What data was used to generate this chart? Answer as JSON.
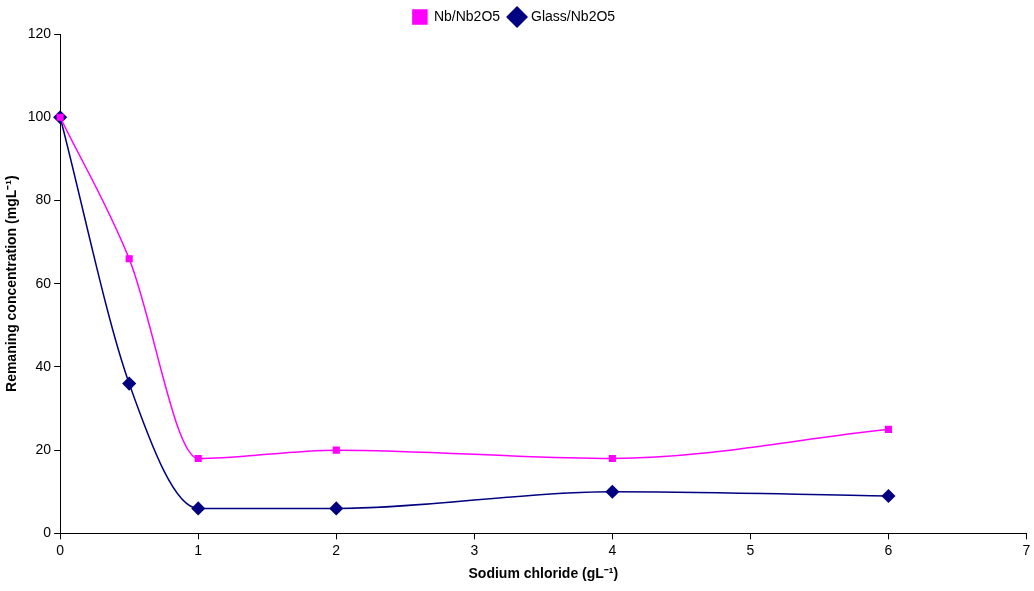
{
  "chart_data": {
    "type": "line",
    "xlabel": "Sodium chloride (gL⁻¹)",
    "ylabel": "Remaning concentration (mgL⁻¹)",
    "x": [
      0,
      0.5,
      1,
      2,
      4,
      6
    ],
    "series": [
      {
        "name": "Glass/Nb2O5",
        "color": "#000080",
        "marker": "diamond",
        "values": [
          100,
          36,
          6,
          6,
          10,
          9
        ]
      },
      {
        "name": "Nb/Nb2O5",
        "color": "#ff00ff",
        "marker": "square",
        "values": [
          100,
          66,
          18,
          20,
          18,
          25
        ]
      }
    ],
    "xlim": [
      0,
      7
    ],
    "xticks": [
      0,
      1,
      2,
      3,
      4,
      5,
      6,
      7
    ],
    "ylim": [
      0,
      120
    ],
    "yticks": [
      0,
      20,
      40,
      60,
      80,
      100,
      120
    ],
    "grid": false,
    "legend": "top",
    "line_style": "solid"
  }
}
